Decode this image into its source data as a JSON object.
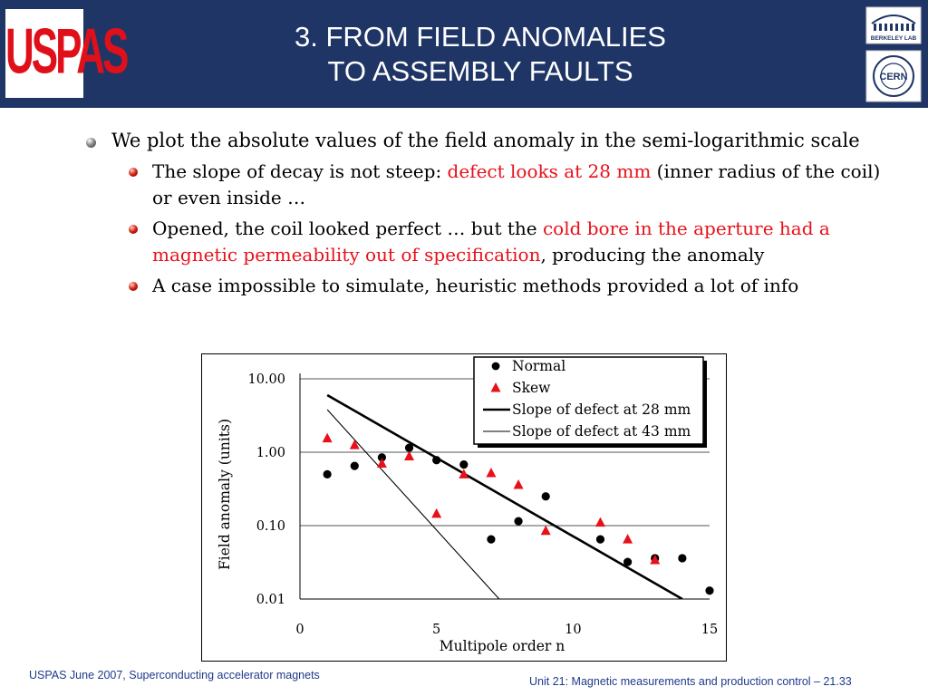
{
  "header": {
    "title_line1": "3. FROM FIELD ANOMALIES",
    "title_line2": "TO ASSEMBLY FAULTS",
    "logo_left_text": "USPAS",
    "logo_right_top_text": "BERKELEY LAB",
    "logo_right_bottom_text": "CERN"
  },
  "bullets": {
    "main": {
      "text": "We plot the absolute values of the field anomaly in the semi-logarithmic scale"
    },
    "sub1": {
      "text_a": "The slope of decay is not steep: ",
      "text_red": "defect looks at 28 mm",
      "text_b": " (inner radius of the coil) or even inside …"
    },
    "sub2": {
      "text_a": "Opened, the coil looked perfect … but the ",
      "text_red": "cold bore in the aperture had a magnetic permeability out of specification",
      "text_b": ", producing the anomaly"
    },
    "sub3": {
      "text": "A case impossible to simulate, heuristic methods provided a lot of info"
    }
  },
  "chart_data": {
    "type": "scatter",
    "xlabel": "Multipole order n",
    "ylabel": "Field anomaly (units)",
    "xlim": [
      0,
      15
    ],
    "ylim": [
      0.01,
      10
    ],
    "yscale": "log",
    "xticks": [
      "0",
      "5",
      "10",
      "15"
    ],
    "yticks": [
      "10.00",
      "1.00",
      "0.10",
      "0.01"
    ],
    "grid": "horizontal",
    "legend_position": "top-right",
    "colors": {
      "normal": "#000000",
      "skew": "#e8101a",
      "slope28": "#000000",
      "slope43": "#000000"
    },
    "series": [
      {
        "name": "Normal",
        "marker": "circle",
        "points": [
          [
            1,
            0.5
          ],
          [
            2,
            0.65
          ],
          [
            3,
            0.85
          ],
          [
            4,
            1.15
          ],
          [
            5,
            0.78
          ],
          [
            6,
            0.68
          ],
          [
            7,
            0.065
          ],
          [
            8,
            0.115
          ],
          [
            9,
            0.25
          ],
          [
            11,
            0.065
          ],
          [
            12,
            0.032
          ],
          [
            13,
            0.036
          ],
          [
            14,
            0.036
          ],
          [
            15,
            0.013
          ]
        ]
      },
      {
        "name": "Skew",
        "marker": "triangle",
        "points": [
          [
            1,
            1.55
          ],
          [
            2,
            1.25
          ],
          [
            3,
            0.7
          ],
          [
            4,
            0.88
          ],
          [
            5,
            0.145
          ],
          [
            6,
            0.5
          ],
          [
            7,
            0.52
          ],
          [
            8,
            0.36
          ],
          [
            9,
            0.085
          ],
          [
            11,
            0.11
          ],
          [
            12,
            0.065
          ],
          [
            13,
            0.034
          ]
        ]
      },
      {
        "name": "Slope of defect at 28 mm",
        "marker": "line",
        "points": [
          [
            1,
            6.0
          ],
          [
            14,
            0.01
          ]
        ]
      },
      {
        "name": "Slope of defect at 43 mm",
        "marker": "line",
        "points": [
          [
            1,
            3.8
          ],
          [
            7.6,
            0.0075
          ]
        ]
      }
    ]
  },
  "footer": {
    "left": "USPAS June  2007,  Superconducting accelerator magnets",
    "right": "Unit 21: Magnetic measurements and production control  – 21.33"
  }
}
